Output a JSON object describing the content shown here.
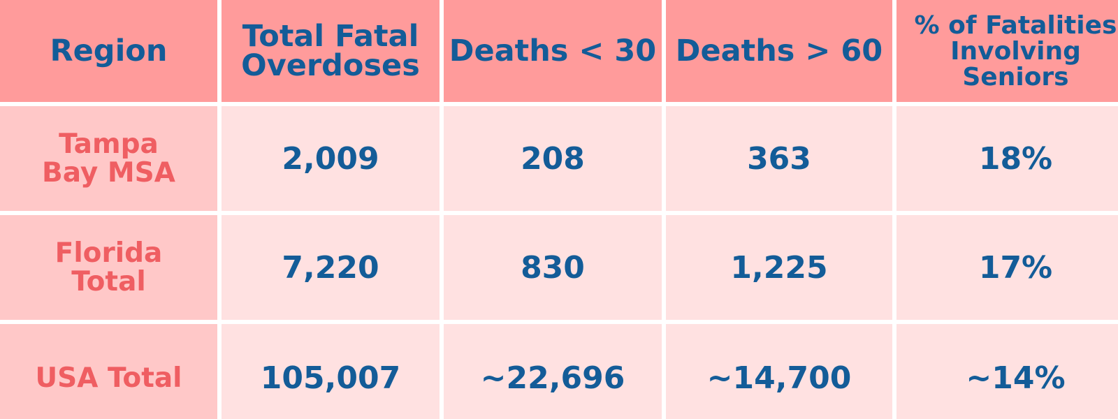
{
  "colors": {
    "header_bg": "#ff9b9b",
    "row_label_bg": "#ffc8c8",
    "cell_bg": "#ffe1e1",
    "header_text": "#135c98",
    "row_label_text": "#ef5e62",
    "value_text": "#135c98"
  },
  "chart_data": {
    "type": "table",
    "title": "",
    "columns": [
      "Region",
      "Total Fatal Overdoses",
      "Deaths < 30",
      "Deaths > 60",
      "% of Fatalities Involving Seniors"
    ],
    "rows": [
      {
        "region": "Tampa Bay MSA",
        "values": [
          "2,009",
          "208",
          "363",
          "18%"
        ]
      },
      {
        "region": "Florida Total",
        "values": [
          "7,220",
          "830",
          "1,225",
          "17%"
        ]
      },
      {
        "region": "USA Total",
        "values": [
          "105,007",
          "~22,696",
          "~14,700",
          "~14%"
        ]
      }
    ]
  }
}
